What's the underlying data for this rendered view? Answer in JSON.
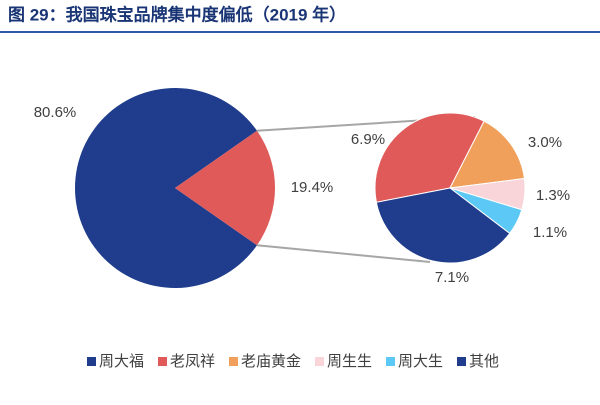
{
  "chart_data": {
    "type": "pie_of_pie",
    "title": "图 29：我国珠宝品牌集中度偏低（2019 年）",
    "categories": [
      "周大福",
      "老凤祥",
      "老庙黄金",
      "周生生",
      "周大生",
      "其他"
    ],
    "values": [
      7.1,
      6.9,
      3.0,
      1.3,
      1.1,
      80.6
    ],
    "value_labels": [
      "7.1%",
      "6.9%",
      "3.0%",
      "1.3%",
      "1.1%",
      "80.6%"
    ],
    "colors": [
      "#1f3d8c",
      "#e05a5a",
      "#f0a05a",
      "#f9d5d9",
      "#5bc8f5",
      "#1f3d8c"
    ],
    "secondary_count": 5,
    "aggregate": {
      "value": 19.4,
      "value_label": "19.4%",
      "color": "#e05a5a"
    },
    "legend": "bottom"
  }
}
